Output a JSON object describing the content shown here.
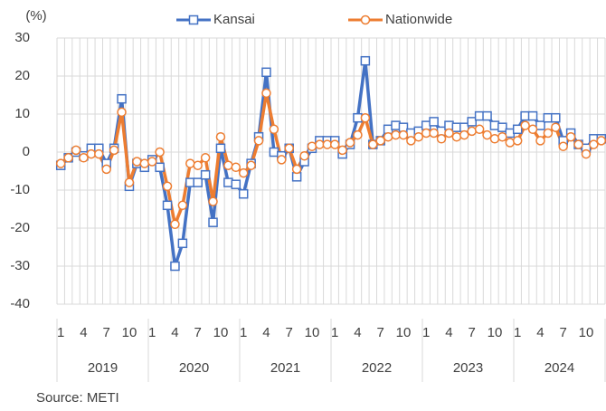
{
  "chart_data": {
    "type": "line",
    "y_unit_label": "(%)",
    "source": "Source: METI",
    "categories": [
      "1",
      null,
      null,
      "4",
      null,
      null,
      "7",
      null,
      null,
      "10",
      null,
      null,
      "1",
      null,
      null,
      "4",
      null,
      null,
      "7",
      null,
      null,
      "10",
      null,
      null,
      "1",
      null,
      null,
      "4",
      null,
      null,
      "7",
      null,
      null,
      "10",
      null,
      null,
      "1",
      null,
      null,
      "4",
      null,
      null,
      "7",
      null,
      null,
      "10",
      null,
      null,
      "1",
      null,
      null,
      "4",
      null,
      null,
      "7",
      null,
      null,
      "10",
      null,
      null,
      "1",
      null,
      null,
      "4",
      null,
      null,
      "7",
      null,
      null,
      "10",
      null,
      null
    ],
    "year_groups": [
      "2019",
      "2020",
      "2021",
      "2022",
      "2023",
      "2024"
    ],
    "series": [
      {
        "name": "Kansai",
        "color": "#4472c4",
        "marker": "square",
        "values": [
          -3.5,
          -1.5,
          0,
          -1,
          1,
          1,
          -3,
          1,
          14,
          -9,
          -3,
          -4,
          -2,
          -4,
          -14,
          -30,
          -24,
          -8,
          -8,
          -6,
          -18.5,
          1,
          -8,
          -8.5,
          -11,
          -3,
          4,
          21,
          0,
          -1,
          1,
          -6.5,
          -2.5,
          1,
          3,
          3,
          3,
          -0.5,
          2,
          9,
          24,
          2,
          3,
          6,
          7,
          6.5,
          5,
          5.5,
          7,
          8,
          5.5,
          7,
          6.5,
          6.5,
          8,
          9.5,
          9.5,
          7,
          6.5,
          5,
          6,
          9.5,
          9.5,
          7,
          9,
          9,
          3,
          5,
          2,
          1,
          3.5,
          3.5
        ]
      },
      {
        "name": "Nationwide",
        "color": "#ed7d31",
        "marker": "circle",
        "values": [
          -3,
          -1.5,
          0.5,
          -1.5,
          -0.5,
          -0.5,
          -4.5,
          0.5,
          10.5,
          -8,
          -2.5,
          -3,
          -2.5,
          0,
          -9,
          -19,
          -14,
          -3,
          -3.5,
          -1.5,
          -13,
          4,
          -3.5,
          -4,
          -5.5,
          -3.5,
          3,
          15.5,
          6,
          -2,
          1,
          -4.5,
          -1,
          1.5,
          2,
          2,
          2,
          0.5,
          2.5,
          4.5,
          9,
          2,
          3,
          4,
          4.5,
          4.5,
          3,
          4,
          5,
          5,
          3.5,
          5,
          4,
          4.5,
          5.5,
          6,
          4.5,
          3.5,
          4,
          2.5,
          3,
          7,
          6,
          3,
          5,
          6.5,
          1.5,
          4,
          2,
          -0.5,
          2,
          3
        ]
      }
    ],
    "ylim": [
      -40,
      30
    ],
    "yticks": [
      -40,
      -30,
      -20,
      -10,
      0,
      10,
      20,
      30
    ],
    "grid": true
  }
}
